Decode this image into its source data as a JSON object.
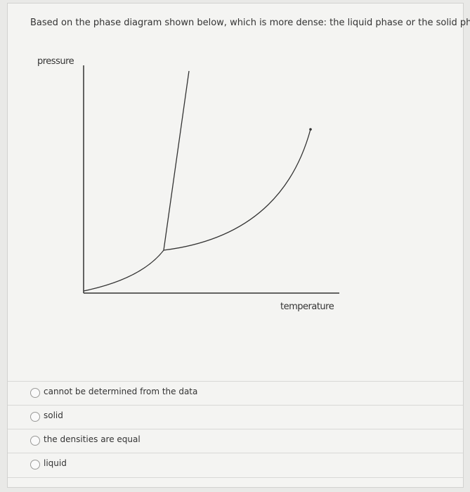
{
  "question": "Based on the phase diagram shown below, which is more dense: the liquid phase or the solid phase?",
  "diagram": {
    "y_axis_label": "pressure",
    "x_axis_label": "temperature"
  },
  "options": [
    "cannot be determined from the data",
    "solid",
    "the densities are equal",
    "liquid"
  ]
}
